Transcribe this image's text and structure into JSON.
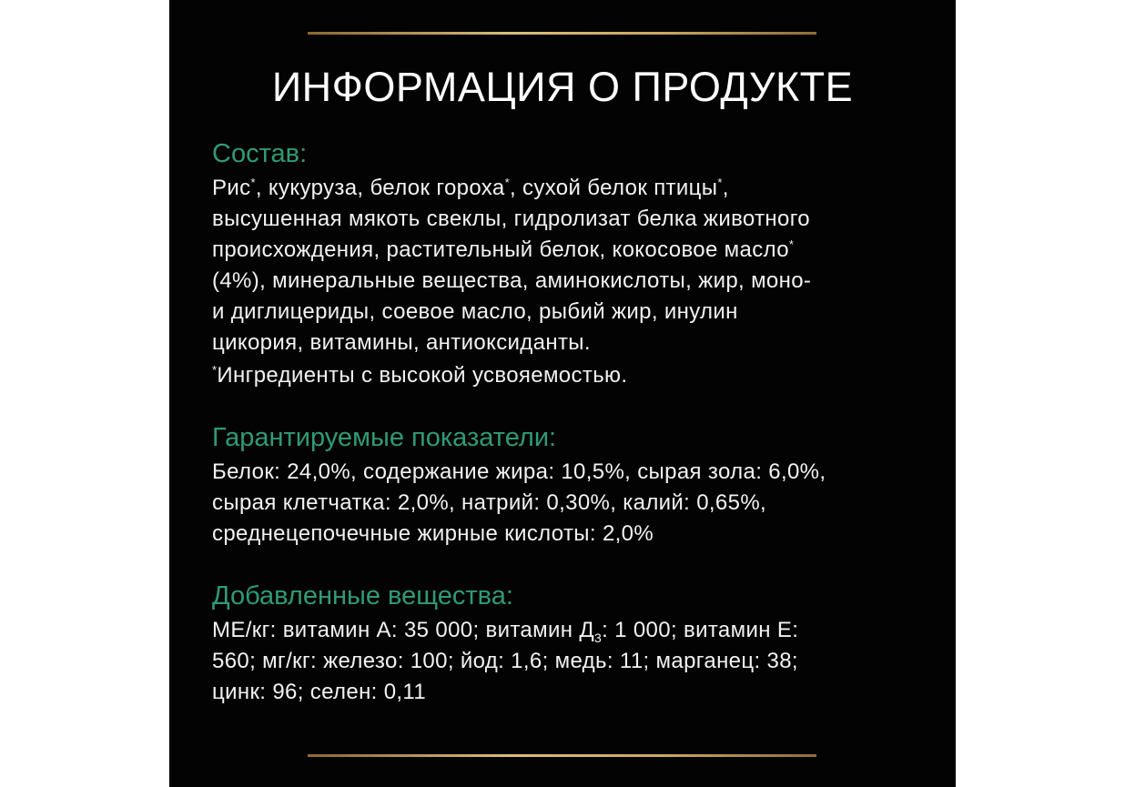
{
  "title": "ИНФОРМАЦИЯ О ПРОДУКТЕ",
  "colors": {
    "background": "#030303",
    "heading": "#2f9a78",
    "text": "#f2f2f2",
    "rule": "#c9a860"
  },
  "sections": [
    {
      "heading": "Состав:",
      "lines": [
        [
          {
            "t": "Рис"
          },
          {
            "t": "*",
            "sup": true
          },
          {
            "t": ", кукуруза, белок гороха"
          },
          {
            "t": "*",
            "sup": true
          },
          {
            "t": ", сухой белок птицы"
          },
          {
            "t": "*",
            "sup": true
          },
          {
            "t": ","
          }
        ],
        [
          {
            "t": "высушенная мякоть свеклы, гидролизат белка животного"
          }
        ],
        [
          {
            "t": "происхождения, растительный белок, кокосовое масло"
          },
          {
            "t": "*",
            "sup": true
          }
        ],
        [
          {
            "t": "(4%), минеральные вещества, аминокислоты, жир, моно-"
          }
        ],
        [
          {
            "t": "и диглицериды, соевое масло, рыбий жир, инулин"
          }
        ],
        [
          {
            "t": "цикория, витамины, антиоксиданты."
          }
        ]
      ],
      "note": [
        {
          "t": "*",
          "sup": true
        },
        {
          "t": "Ингредиенты с высокой усвояемостью."
        }
      ]
    },
    {
      "heading": "Гарантируемые показатели:",
      "lines": [
        [
          {
            "t": "Белок: 24,0%, содержание жира: 10,5%, сырая зола: 6,0%,"
          }
        ],
        [
          {
            "t": "сырая клетчатка: 2,0%, натрий: 0,30%, калий: 0,65%,"
          }
        ],
        [
          {
            "t": "среднецепочечные жирные кислоты: 2,0%"
          }
        ]
      ]
    },
    {
      "heading": "Добавленные вещества:",
      "lines": [
        [
          {
            "t": "МЕ/кг: витамин А: 35 000; витамин Д"
          },
          {
            "t": "3",
            "sub": true
          },
          {
            "t": ": 1 000; витамин Е:"
          }
        ],
        [
          {
            "t": "560; мг/кг: железо: 100; йод: 1,6; медь: 11; марганец: 38;"
          }
        ],
        [
          {
            "t": "цинк: 96; селен: 0,11"
          }
        ]
      ]
    }
  ]
}
